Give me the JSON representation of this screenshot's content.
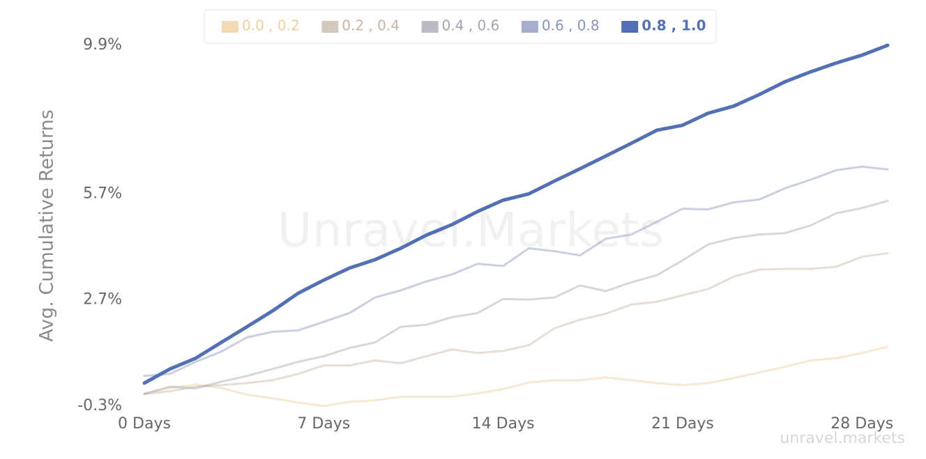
{
  "chart_data": {
    "type": "line",
    "y_label": "Avg. Cumulative Returns",
    "watermark": "Unravel.Markets",
    "footer_watermark": "unravel.markets",
    "xlim": [
      0,
      29
    ],
    "xticks": [
      {
        "value": 0,
        "label": "0 Days"
      },
      {
        "value": 7,
        "label": "7 Days"
      },
      {
        "value": 14,
        "label": "14 Days"
      },
      {
        "value": 21,
        "label": "21 Days"
      },
      {
        "value": 28,
        "label": "28 Days"
      }
    ],
    "ylim": [
      -0.3,
      9.9
    ],
    "yticks": [
      {
        "value": -0.3,
        "label": "-0.3%"
      },
      {
        "value": 2.7,
        "label": "2.7%"
      },
      {
        "value": 5.7,
        "label": "5.7%"
      },
      {
        "value": 9.9,
        "label": "9.9%"
      }
    ],
    "grid": false,
    "highlight_series": 4,
    "x": [
      0,
      1,
      2,
      3,
      4,
      5,
      6,
      7,
      8,
      9,
      10,
      11,
      12,
      13,
      14,
      15,
      16,
      17,
      18,
      19,
      20,
      21,
      22,
      23,
      24,
      25,
      26,
      27,
      28,
      29
    ],
    "series": [
      {
        "name": "0.0 , 0.2",
        "color": "#efcd9c",
        "values": [
          0.06,
          0.21,
          0.31,
          0.21,
          0.02,
          -0.08,
          -0.2,
          -0.3,
          -0.18,
          -0.14,
          -0.04,
          -0.04,
          -0.04,
          0.06,
          0.18,
          0.37,
          0.43,
          0.43,
          0.51,
          0.43,
          0.35,
          0.29,
          0.35,
          0.49,
          0.65,
          0.81,
          0.99,
          1.05,
          1.2,
          1.38
        ]
      },
      {
        "name": "0.2 , 0.4",
        "color": "#c6b5a6",
        "values": [
          0.04,
          0.12,
          0.25,
          0.29,
          0.35,
          0.43,
          0.61,
          0.85,
          0.85,
          0.99,
          0.91,
          1.11,
          1.3,
          1.2,
          1.26,
          1.42,
          1.9,
          2.14,
          2.31,
          2.57,
          2.65,
          2.83,
          3.01,
          3.36,
          3.56,
          3.58,
          3.58,
          3.64,
          3.92,
          4.02
        ]
      },
      {
        "name": "0.4 , 0.6",
        "color": "#a5a3b3",
        "values": [
          0.04,
          0.25,
          0.2,
          0.39,
          0.55,
          0.75,
          0.95,
          1.11,
          1.34,
          1.5,
          1.94,
          2.0,
          2.21,
          2.33,
          2.73,
          2.71,
          2.77,
          3.11,
          2.95,
          3.2,
          3.4,
          3.82,
          4.27,
          4.45,
          4.55,
          4.59,
          4.81,
          5.15,
          5.3,
          5.5
        ]
      },
      {
        "name": "0.6 , 0.8",
        "color": "#8793bd",
        "values": [
          0.55,
          0.61,
          0.95,
          1.24,
          1.64,
          1.8,
          1.84,
          2.08,
          2.33,
          2.77,
          2.97,
          3.22,
          3.42,
          3.72,
          3.66,
          4.16,
          4.08,
          3.96,
          4.43,
          4.55,
          4.91,
          5.28,
          5.26,
          5.46,
          5.54,
          5.86,
          6.1,
          6.37,
          6.47,
          6.39
        ]
      },
      {
        "name": "0.8 , 1.0",
        "color": "#5470b4",
        "values": [
          0.35,
          0.75,
          1.05,
          1.5,
          1.94,
          2.39,
          2.89,
          3.26,
          3.6,
          3.84,
          4.16,
          4.53,
          4.83,
          5.2,
          5.52,
          5.7,
          6.06,
          6.41,
          6.77,
          7.13,
          7.5,
          7.64,
          7.98,
          8.18,
          8.51,
          8.87,
          9.15,
          9.4,
          9.62,
          9.9
        ]
      }
    ]
  }
}
